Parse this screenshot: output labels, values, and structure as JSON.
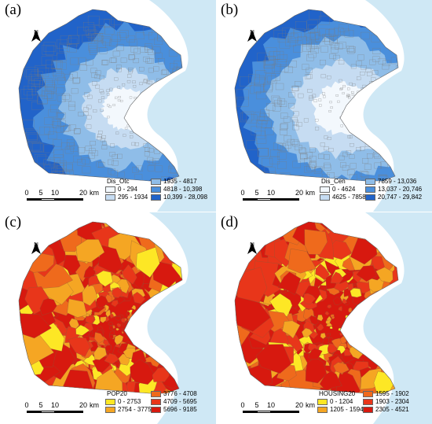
{
  "scale_bar": {
    "ticks": [
      "0",
      "5",
      "10",
      "20"
    ],
    "unit": "km"
  },
  "north_label": "N",
  "colors": {
    "water": "#cfe8f5",
    "boundary": "#7a7a7a"
  },
  "panels": [
    {
      "label": "(a)",
      "legend_title": "Dis_Otc",
      "classes": [
        {
          "range": "0 - 294",
          "color": "#f3f8fd"
        },
        {
          "range": "295 - 1934",
          "color": "#c6dcf2"
        },
        {
          "range": "1935 - 4817",
          "color": "#8fbde8"
        },
        {
          "range": "4818 - 10,398",
          "color": "#4a8fdc"
        },
        {
          "range": "10,399 - 28,098",
          "color": "#2163c9"
        }
      ]
    },
    {
      "label": "(b)",
      "legend_title": "Dis_Cen",
      "classes": [
        {
          "range": "0 - 4624",
          "color": "#f3f8fd"
        },
        {
          "range": "4625 - 7858",
          "color": "#c6dcf2"
        },
        {
          "range": "7859 - 13,036",
          "color": "#8fbde8"
        },
        {
          "range": "13,037 - 20,746",
          "color": "#4a8fdc"
        },
        {
          "range": "20,747 - 29,842",
          "color": "#2163c9"
        }
      ]
    },
    {
      "label": "(c)",
      "legend_title": "POP20",
      "classes": [
        {
          "range": "0 - 2753",
          "color": "#fde725"
        },
        {
          "range": "2754 - 3775",
          "color": "#f5a623"
        },
        {
          "range": "3776 - 4708",
          "color": "#ef6a1c"
        },
        {
          "range": "4709 - 5695",
          "color": "#e8361a"
        },
        {
          "range": "5696 - 9185",
          "color": "#d7190f"
        }
      ]
    },
    {
      "label": "(d)",
      "legend_title": "HOUSING20",
      "classes": [
        {
          "range": "0 - 1204",
          "color": "#fde725"
        },
        {
          "range": "1205 - 1594",
          "color": "#f5a623"
        },
        {
          "range": "1595 - 1902",
          "color": "#ef6a1c"
        },
        {
          "range": "1903 - 2304",
          "color": "#e8361a"
        },
        {
          "range": "2305 - 4521",
          "color": "#d7190f"
        }
      ]
    }
  ]
}
